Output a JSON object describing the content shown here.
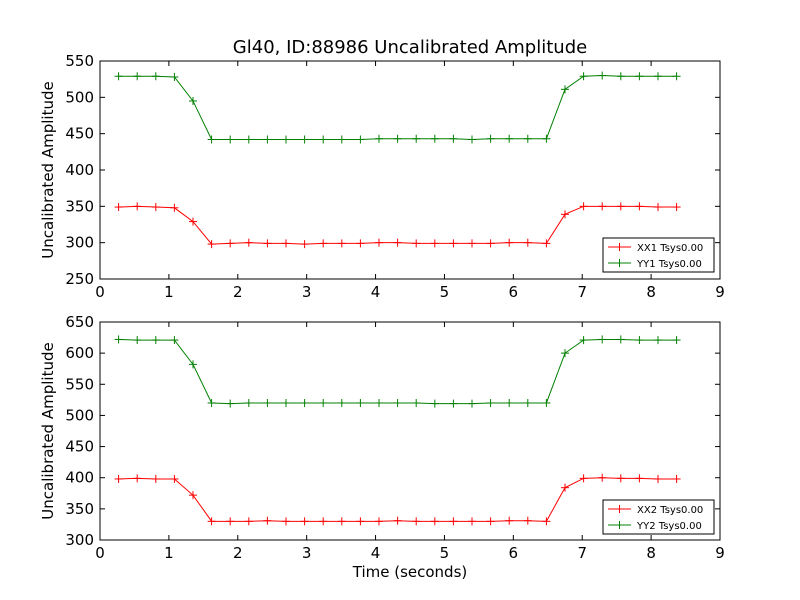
{
  "chart_data": [
    {
      "type": "line",
      "title": "Gl40, ID:88986 Uncalibrated Amplitude",
      "xlabel": "",
      "ylabel": "Uncalibrated Amplitude",
      "xlim": [
        0,
        9
      ],
      "ylim": [
        250,
        550
      ],
      "xticks": [
        "0",
        "1",
        "2",
        "3",
        "4",
        "5",
        "6",
        "7",
        "8",
        "9"
      ],
      "yticks": [
        "250",
        "300",
        "350",
        "400",
        "450",
        "500",
        "550"
      ],
      "grid": false,
      "legend_position": "lower-right",
      "x": [
        0.27,
        0.54,
        0.81,
        1.08,
        1.35,
        1.62,
        1.89,
        2.16,
        2.43,
        2.7,
        2.97,
        3.24,
        3.51,
        3.78,
        4.05,
        4.32,
        4.59,
        4.86,
        5.13,
        5.4,
        5.67,
        5.94,
        6.21,
        6.48,
        6.75,
        7.02,
        7.29,
        7.56,
        7.83,
        8.1,
        8.37
      ],
      "series": [
        {
          "name": "XX1 Tsys0.00",
          "color": "#ff0000",
          "values": [
            349,
            350,
            349,
            348,
            329,
            298,
            299,
            300,
            299,
            299,
            298,
            299,
            299,
            299,
            300,
            300,
            299,
            299,
            299,
            299,
            299,
            300,
            300,
            299,
            339,
            350,
            350,
            350,
            350,
            349,
            349
          ]
        },
        {
          "name": "YY1 Tsys0.00",
          "color": "#008000",
          "values": [
            529,
            529,
            529,
            528,
            495,
            442,
            442,
            442,
            442,
            442,
            442,
            442,
            442,
            442,
            443,
            443,
            443,
            443,
            443,
            442,
            443,
            443,
            443,
            443,
            511,
            529,
            530,
            529,
            529,
            529,
            529
          ]
        }
      ]
    },
    {
      "type": "line",
      "title": "",
      "xlabel": "Time (seconds)",
      "ylabel": "Uncalibrated Amplitude",
      "xlim": [
        0,
        9
      ],
      "ylim": [
        300,
        650
      ],
      "xticks": [
        "0",
        "1",
        "2",
        "3",
        "4",
        "5",
        "6",
        "7",
        "8",
        "9"
      ],
      "yticks": [
        "300",
        "350",
        "400",
        "450",
        "500",
        "550",
        "600",
        "650"
      ],
      "grid": false,
      "legend_position": "lower-right",
      "x": [
        0.27,
        0.54,
        0.81,
        1.08,
        1.35,
        1.62,
        1.89,
        2.16,
        2.43,
        2.7,
        2.97,
        3.24,
        3.51,
        3.78,
        4.05,
        4.32,
        4.59,
        4.86,
        5.13,
        5.4,
        5.67,
        5.94,
        6.21,
        6.48,
        6.75,
        7.02,
        7.29,
        7.56,
        7.83,
        8.1,
        8.37
      ],
      "series": [
        {
          "name": "XX2 Tsys0.00",
          "color": "#ff0000",
          "values": [
            398,
            399,
            398,
            398,
            372,
            330,
            330,
            330,
            331,
            330,
            330,
            330,
            330,
            330,
            330,
            331,
            330,
            330,
            330,
            330,
            330,
            331,
            331,
            330,
            384,
            399,
            400,
            399,
            399,
            398,
            398
          ]
        },
        {
          "name": "YY2 Tsys0.00",
          "color": "#008000",
          "values": [
            622,
            621,
            621,
            621,
            582,
            520,
            519,
            520,
            520,
            520,
            520,
            520,
            520,
            520,
            520,
            520,
            520,
            519,
            519,
            519,
            520,
            520,
            520,
            520,
            600,
            621,
            622,
            622,
            621,
            621,
            621
          ]
        }
      ]
    }
  ]
}
